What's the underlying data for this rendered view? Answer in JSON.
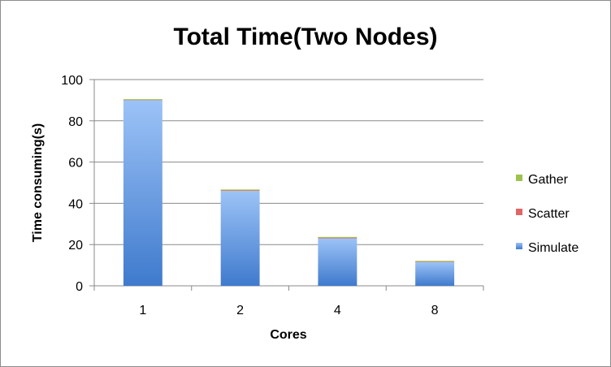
{
  "chart_data": {
    "type": "bar",
    "stacked": true,
    "title": "Total Time(Two Nodes)",
    "xlabel": "Cores",
    "ylabel": "Time consuming(s)",
    "categories": [
      "1",
      "2",
      "4",
      "8"
    ],
    "ylim": [
      0,
      100
    ],
    "yticks": [
      0,
      20,
      40,
      60,
      80,
      100
    ],
    "grid": true,
    "legend_position": "right",
    "series": [
      {
        "name": "Simulate",
        "values": [
          90.0,
          46.0,
          23.0,
          11.5
        ],
        "color": "#4f81bd"
      },
      {
        "name": "Scatter",
        "values": [
          0.1,
          0.3,
          0.3,
          0.2
        ],
        "color": "#e06666"
      },
      {
        "name": "Gather",
        "values": [
          0.2,
          0.2,
          0.3,
          0.2
        ],
        "color": "#9bc34d"
      }
    ],
    "legend_order": [
      "Gather",
      "Scatter",
      "Simulate"
    ]
  }
}
